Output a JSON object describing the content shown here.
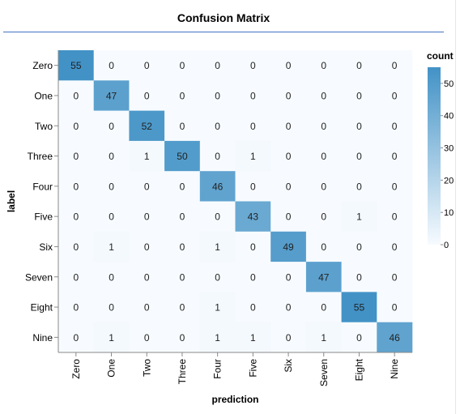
{
  "title": "Confusion Matrix",
  "chart_data": {
    "type": "heatmap",
    "title": "Confusion Matrix",
    "xlabel": "prediction",
    "ylabel": "label",
    "x_categories": [
      "Zero",
      "One",
      "Two",
      "Three",
      "Four",
      "Five",
      "Six",
      "Seven",
      "Eight",
      "Nine"
    ],
    "y_categories": [
      "Zero",
      "One",
      "Two",
      "Three",
      "Four",
      "Five",
      "Six",
      "Seven",
      "Eight",
      "Nine"
    ],
    "values": [
      [
        55,
        0,
        0,
        0,
        0,
        0,
        0,
        0,
        0,
        0
      ],
      [
        0,
        47,
        0,
        0,
        0,
        0,
        0,
        0,
        0,
        0
      ],
      [
        0,
        0,
        52,
        0,
        0,
        0,
        0,
        0,
        0,
        0
      ],
      [
        0,
        0,
        1,
        50,
        0,
        1,
        0,
        0,
        0,
        0
      ],
      [
        0,
        0,
        0,
        0,
        46,
        0,
        0,
        0,
        0,
        0
      ],
      [
        0,
        0,
        0,
        0,
        0,
        43,
        0,
        0,
        1,
        0
      ],
      [
        0,
        1,
        0,
        0,
        1,
        0,
        49,
        0,
        0,
        0
      ],
      [
        0,
        0,
        0,
        0,
        0,
        0,
        0,
        47,
        0,
        0
      ],
      [
        0,
        0,
        0,
        0,
        1,
        0,
        0,
        0,
        55,
        0
      ],
      [
        0,
        1,
        0,
        0,
        1,
        1,
        0,
        1,
        0,
        46
      ]
    ],
    "legend": {
      "title": "count",
      "position": "right",
      "ticks": [
        0,
        10,
        20,
        30,
        40,
        50
      ],
      "range": [
        0,
        55
      ]
    },
    "colors": {
      "low": "#f7fbff",
      "high": "#4292c6"
    },
    "grid": false
  }
}
